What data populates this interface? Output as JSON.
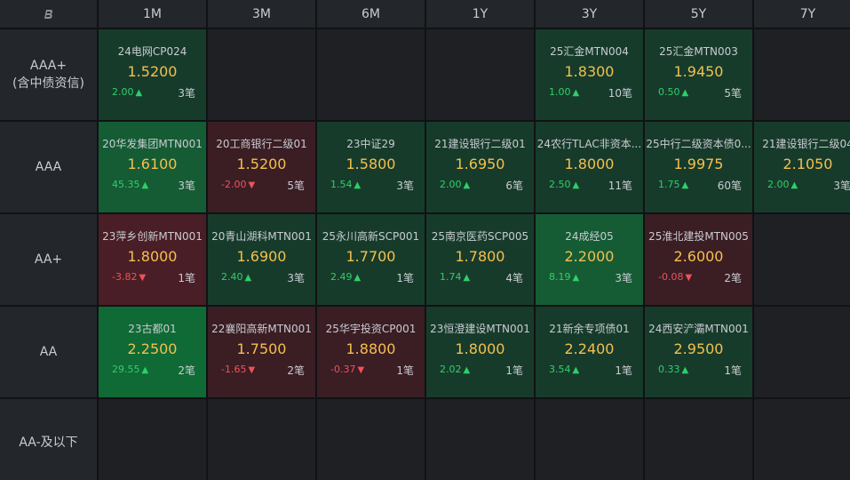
{
  "corner_icon": "b-logo-icon",
  "columns": [
    "1M",
    "3M",
    "6M",
    "1Y",
    "3Y",
    "5Y",
    "7Y"
  ],
  "rows": [
    {
      "label": [
        "AAA+",
        "(含中债资信)"
      ],
      "cells": [
        {
          "name": "24电网CP024",
          "rate": "1.5200",
          "change": "2.00",
          "dir": "up",
          "count": "3笔",
          "tone": "g1"
        },
        null,
        null,
        null,
        {
          "name": "25汇金MTN004",
          "rate": "1.8300",
          "change": "1.00",
          "dir": "up",
          "count": "10笔",
          "tone": "g1"
        },
        {
          "name": "25汇金MTN003",
          "rate": "1.9450",
          "change": "0.50",
          "dir": "up",
          "count": "5笔",
          "tone": "g1"
        },
        null
      ]
    },
    {
      "label": [
        "AAA"
      ],
      "cells": [
        {
          "name": "20华发集团MTN001",
          "rate": "1.6100",
          "change": "45.35",
          "dir": "up",
          "count": "3笔",
          "tone": "g2"
        },
        {
          "name": "20工商银行二级01",
          "rate": "1.5200",
          "change": "-2.00",
          "dir": "down",
          "count": "5笔",
          "tone": "r1"
        },
        {
          "name": "23中证29",
          "rate": "1.5800",
          "change": "1.54",
          "dir": "up",
          "count": "3笔",
          "tone": "g1"
        },
        {
          "name": "21建设银行二级01",
          "rate": "1.6950",
          "change": "2.00",
          "dir": "up",
          "count": "6笔",
          "tone": "g1"
        },
        {
          "name": "24农行TLAC非资本...",
          "rate": "1.8000",
          "change": "2.50",
          "dir": "up",
          "count": "11笔",
          "tone": "g1"
        },
        {
          "name": "25中行二级资本债0...",
          "rate": "1.9975",
          "change": "1.75",
          "dir": "up",
          "count": "60笔",
          "tone": "g1"
        },
        {
          "name": "21建设银行二级04",
          "rate": "2.1050",
          "change": "2.00",
          "dir": "up",
          "count": "3笔",
          "tone": "g1"
        }
      ]
    },
    {
      "label": [
        "AA+"
      ],
      "cells": [
        {
          "name": "23萍乡创新MTN001",
          "rate": "1.8000",
          "change": "-3.82",
          "dir": "down",
          "count": "1笔",
          "tone": "r2"
        },
        {
          "name": "20青山湖科MTN001",
          "rate": "1.6900",
          "change": "2.40",
          "dir": "up",
          "count": "3笔",
          "tone": "g1"
        },
        {
          "name": "25永川高新SCP001",
          "rate": "1.7700",
          "change": "2.49",
          "dir": "up",
          "count": "1笔",
          "tone": "g1"
        },
        {
          "name": "25南京医药SCP005",
          "rate": "1.7800",
          "change": "1.74",
          "dir": "up",
          "count": "4笔",
          "tone": "g1"
        },
        {
          "name": "24成经05",
          "rate": "2.2000",
          "change": "8.19",
          "dir": "up",
          "count": "3笔",
          "tone": "g2"
        },
        {
          "name": "25淮北建投MTN005",
          "rate": "2.6000",
          "change": "-0.08",
          "dir": "down",
          "count": "2笔",
          "tone": "r1"
        },
        null
      ]
    },
    {
      "label": [
        "AA"
      ],
      "cells": [
        {
          "name": "23古都01",
          "rate": "2.2500",
          "change": "29.55",
          "dir": "up",
          "count": "2笔",
          "tone": "g3"
        },
        {
          "name": "22襄阳高新MTN001",
          "rate": "1.7500",
          "change": "-1.65",
          "dir": "down",
          "count": "2笔",
          "tone": "r1"
        },
        {
          "name": "25华宇投资CP001",
          "rate": "1.8800",
          "change": "-0.37",
          "dir": "down",
          "count": "1笔",
          "tone": "r1"
        },
        {
          "name": "23恒澄建设MTN001",
          "rate": "1.8000",
          "change": "2.02",
          "dir": "up",
          "count": "1笔",
          "tone": "g1"
        },
        {
          "name": "21新余专项债01",
          "rate": "2.2400",
          "change": "3.54",
          "dir": "up",
          "count": "1笔",
          "tone": "g1"
        },
        {
          "name": "24西安浐灞MTN001",
          "rate": "2.9500",
          "change": "0.33",
          "dir": "up",
          "count": "1笔",
          "tone": "g1"
        },
        null
      ]
    },
    {
      "label": [
        "AA-及以下"
      ],
      "cells": [
        null,
        null,
        null,
        null,
        null,
        null,
        null
      ]
    }
  ],
  "arrows": {
    "up": "▲",
    "down": "▼"
  }
}
